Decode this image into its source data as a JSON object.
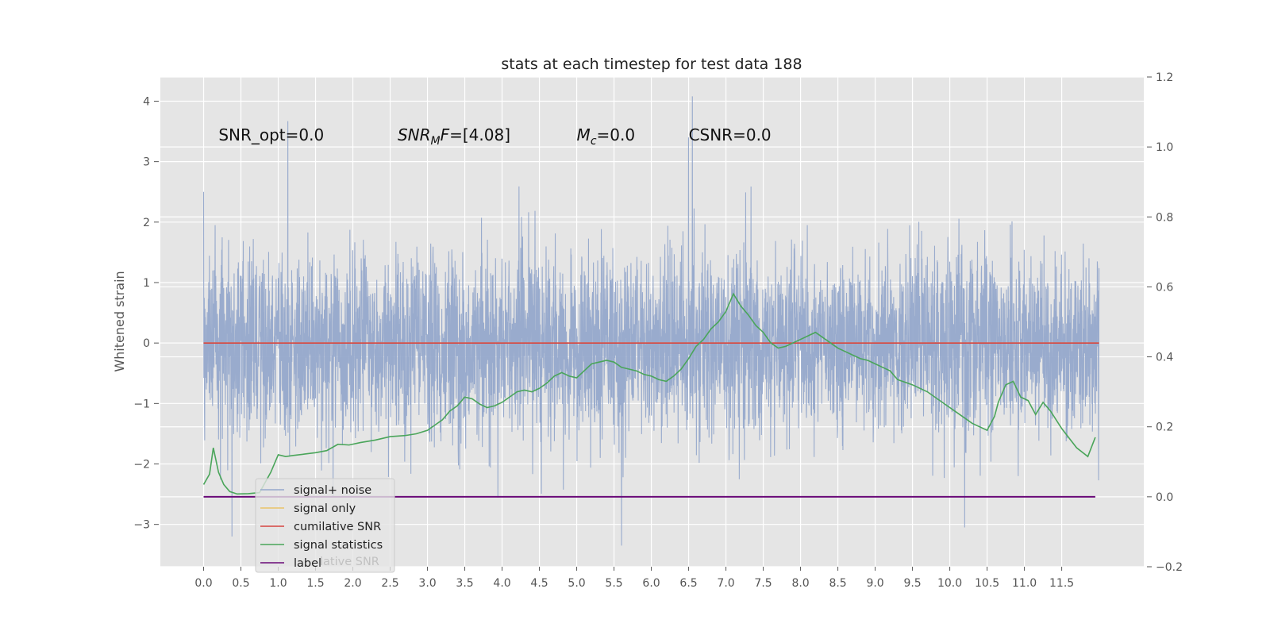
{
  "chart_data": {
    "type": "line",
    "title": "stats at each timestep for test data 188",
    "ylabel": "Whitened strain",
    "xlabel": "",
    "xlim": [
      -0.58,
      12.6
    ],
    "ylim": [
      -3.7,
      4.4
    ],
    "y2lim": [
      -0.2,
      1.2
    ],
    "grid": true,
    "legend_position": "lower-left",
    "x_ticks": [
      0.0,
      0.5,
      1.0,
      1.5,
      2.0,
      2.5,
      3.0,
      3.5,
      4.0,
      4.5,
      5.0,
      5.5,
      6.0,
      6.5,
      7.0,
      7.5,
      8.0,
      8.5,
      9.0,
      9.5,
      10.0,
      10.5,
      11.0,
      11.5
    ],
    "x_tick_labels": [
      "0.0",
      "0.5",
      "1.0",
      "1.5",
      "2.0",
      "2.5",
      "3.0",
      "3.5",
      "4.0",
      "4.5",
      "5.0",
      "5.5",
      "6.0",
      "6.5",
      "7.0",
      "7.5",
      "8.0",
      "8.5",
      "9.0",
      "9.5",
      "10.0",
      "10.5",
      "11.0",
      "11.5"
    ],
    "y_ticks": [
      -3,
      -2,
      -1,
      0,
      1,
      2,
      3,
      4
    ],
    "y_tick_labels": [
      "−3",
      "−2",
      "−1",
      "0",
      "1",
      "2",
      "3",
      "4"
    ],
    "y2_ticks": [
      -0.2,
      0.0,
      0.2,
      0.4,
      0.6,
      0.8,
      1.0,
      1.2
    ],
    "y2_tick_labels": [
      "−0.2",
      "0.0",
      "0.2",
      "0.4",
      "0.6",
      "0.8",
      "1.0",
      "1.2"
    ],
    "annotations": [
      {
        "id": "snr-opt",
        "text": "SNR_opt=0.0",
        "x": 0.2,
        "y": 3.35
      },
      {
        "id": "snr-mf",
        "prefix": "SNR",
        "sub": "M",
        "suffix": "F=[4.08]",
        "x": 2.6,
        "y": 3.35
      },
      {
        "id": "mc",
        "prefix": "M",
        "sub": "c",
        "suffix": "=0.0",
        "x": 5.0,
        "y": 3.35
      },
      {
        "id": "csnr",
        "text": "CSNR=0.0",
        "x": 6.5,
        "y": 3.35
      }
    ],
    "series": [
      {
        "name": "signal+ noise",
        "color": "#95a8cb",
        "axis": "left",
        "x_start": 0.0,
        "x_end": 12.0,
        "typical_amplitude": 1.3,
        "y_max": 4.08,
        "y_min": -3.35,
        "notable_peaks": [
          [
            0.0,
            2.5
          ],
          [
            1.13,
            3.67
          ],
          [
            6.5,
            3.4
          ],
          [
            6.55,
            4.08
          ],
          [
            5.6,
            -3.35
          ],
          [
            0.38,
            -3.2
          ],
          [
            10.2,
            -3.05
          ],
          [
            6.0,
            -1.2
          ]
        ]
      },
      {
        "name": "signal only",
        "color": "#e9c46a",
        "axis": "left",
        "x": [
          0.0,
          12.0
        ],
        "y": [
          0.0,
          0.0
        ]
      },
      {
        "name": "cumilative SNR",
        "color": "#d64541",
        "axis": "left",
        "x": [
          0.0,
          12.0
        ],
        "y": [
          0.0,
          0.0
        ]
      },
      {
        "name": "signal statistics",
        "color": "#4aa55a",
        "axis": "right",
        "x": [
          0.0,
          0.08,
          0.13,
          0.2,
          0.27,
          0.35,
          0.45,
          0.6,
          0.75,
          0.9,
          1.0,
          1.1,
          1.2,
          1.35,
          1.5,
          1.65,
          1.8,
          1.95,
          2.1,
          2.3,
          2.5,
          2.7,
          2.85,
          3.0,
          3.1,
          3.2,
          3.3,
          3.4,
          3.5,
          3.6,
          3.7,
          3.8,
          3.9,
          4.0,
          4.1,
          4.2,
          4.3,
          4.4,
          4.5,
          4.6,
          4.7,
          4.8,
          4.9,
          5.0,
          5.1,
          5.2,
          5.3,
          5.4,
          5.5,
          5.6,
          5.7,
          5.8,
          5.9,
          6.0,
          6.1,
          6.2,
          6.3,
          6.4,
          6.5,
          6.6,
          6.7,
          6.8,
          6.9,
          7.0,
          7.1,
          7.2,
          7.3,
          7.4,
          7.5,
          7.6,
          7.7,
          7.8,
          7.9,
          8.0,
          8.1,
          8.2,
          8.3,
          8.4,
          8.5,
          8.6,
          8.7,
          8.8,
          8.9,
          9.0,
          9.1,
          9.2,
          9.3,
          9.5,
          9.7,
          9.9,
          10.1,
          10.3,
          10.5,
          10.6,
          10.65,
          10.75,
          10.85,
          10.95,
          11.05,
          11.1,
          11.15,
          11.25,
          11.35,
          11.5,
          11.7,
          11.85,
          11.95
        ],
        "y": [
          0.035,
          0.065,
          0.14,
          0.07,
          0.035,
          0.015,
          0.008,
          0.009,
          0.012,
          0.07,
          0.12,
          0.115,
          0.118,
          0.122,
          0.126,
          0.132,
          0.15,
          0.148,
          0.155,
          0.162,
          0.172,
          0.175,
          0.18,
          0.19,
          0.205,
          0.22,
          0.245,
          0.26,
          0.285,
          0.28,
          0.265,
          0.255,
          0.26,
          0.27,
          0.285,
          0.3,
          0.305,
          0.3,
          0.31,
          0.325,
          0.345,
          0.355,
          0.345,
          0.34,
          0.36,
          0.38,
          0.385,
          0.39,
          0.385,
          0.37,
          0.365,
          0.36,
          0.35,
          0.345,
          0.335,
          0.33,
          0.345,
          0.365,
          0.395,
          0.43,
          0.45,
          0.48,
          0.5,
          0.53,
          0.58,
          0.545,
          0.52,
          0.49,
          0.47,
          0.44,
          0.425,
          0.43,
          0.44,
          0.45,
          0.46,
          0.47,
          0.455,
          0.44,
          0.425,
          0.415,
          0.405,
          0.395,
          0.39,
          0.38,
          0.37,
          0.36,
          0.335,
          0.32,
          0.3,
          0.27,
          0.24,
          0.21,
          0.19,
          0.23,
          0.27,
          0.32,
          0.33,
          0.285,
          0.275,
          0.255,
          0.235,
          0.27,
          0.245,
          0.195,
          0.14,
          0.115,
          0.17
        ]
      },
      {
        "name": "label",
        "color": "#6a0a78",
        "axis": "right",
        "x": [
          0.0,
          11.95
        ],
        "y": [
          0.0,
          0.0
        ]
      }
    ],
    "legend": {
      "entries": [
        "signal+ noise",
        "signal only",
        "cumilative SNR",
        "signal statistics",
        "label"
      ],
      "hidden_text": "lative SNR"
    }
  }
}
